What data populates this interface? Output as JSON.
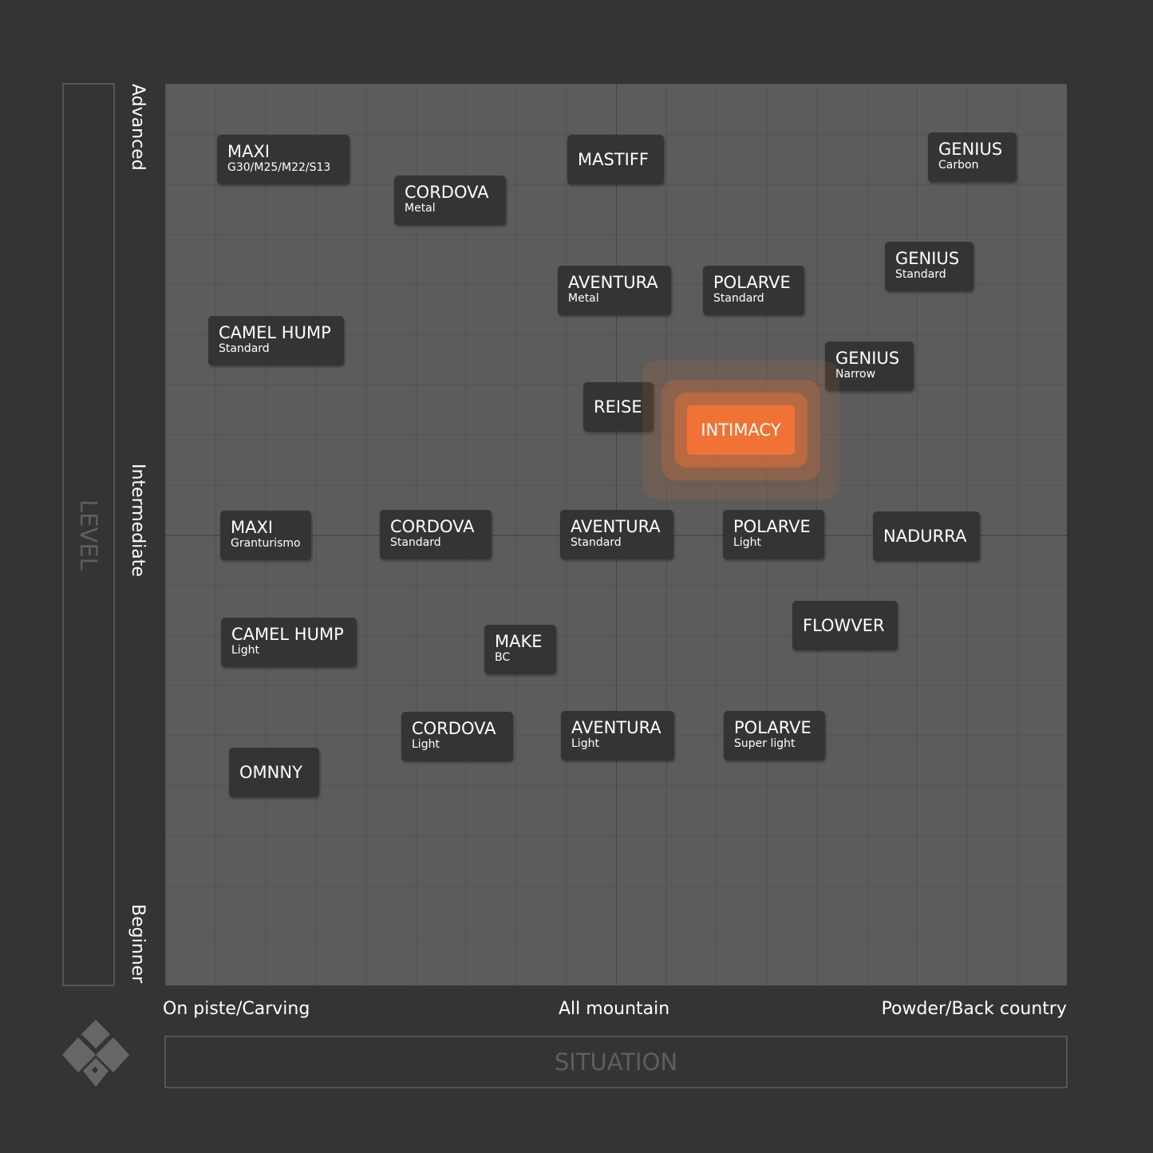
{
  "y_axis": {
    "title": "LEVEL",
    "labels": [
      "Advanced",
      "Intermediate",
      "Beginner"
    ]
  },
  "x_axis": {
    "title": "SITUATION",
    "labels": [
      "On piste/Carving",
      "All mountain",
      "Powder/Back country"
    ]
  },
  "nodes": [
    {
      "name": "MAXI",
      "sub": "G30/M25/M22/S13"
    },
    {
      "name": "CORDOVA",
      "sub": "Metal"
    },
    {
      "name": "MASTIFF"
    },
    {
      "name": "GENIUS",
      "sub": "Carbon"
    },
    {
      "name": "GENIUS",
      "sub": "Standard"
    },
    {
      "name": "AVENTURA",
      "sub": "Metal"
    },
    {
      "name": "POLARVE",
      "sub": "Standard"
    },
    {
      "name": "CAMEL HUMP",
      "sub": "Standard"
    },
    {
      "name": "GENIUS",
      "sub": "Narrow"
    },
    {
      "name": "REISE"
    },
    {
      "name": "INTIMACY",
      "highlight": true
    },
    {
      "name": "MAXI",
      "sub": "Granturismo"
    },
    {
      "name": "CORDOVA",
      "sub": "Standard"
    },
    {
      "name": "AVENTURA",
      "sub": "Standard"
    },
    {
      "name": "POLARVE",
      "sub": "Light"
    },
    {
      "name": "NADURRA"
    },
    {
      "name": "FLOWVER"
    },
    {
      "name": "CAMEL HUMP",
      "sub": "Light"
    },
    {
      "name": "MAKE",
      "sub": "BC"
    },
    {
      "name": "CORDOVA",
      "sub": "Light"
    },
    {
      "name": "AVENTURA",
      "sub": "Light"
    },
    {
      "name": "POLARVE",
      "sub": "Super light"
    },
    {
      "name": "OMNNY"
    }
  ]
}
